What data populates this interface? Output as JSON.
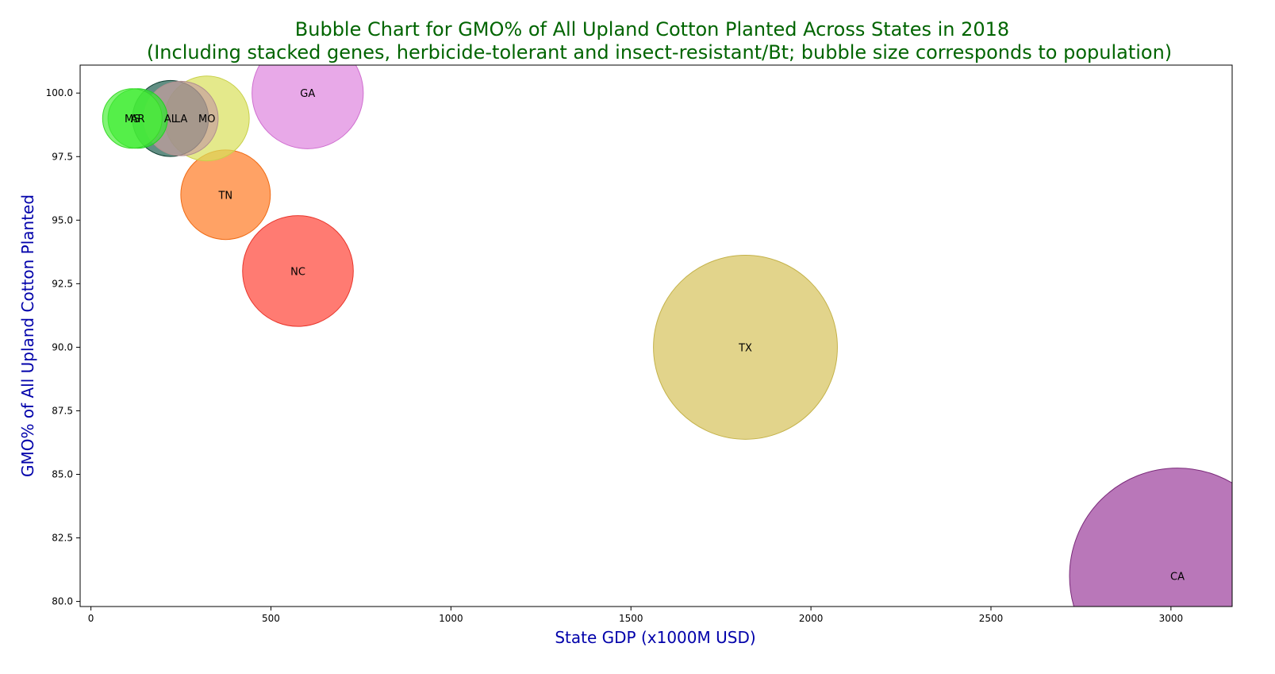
{
  "chart_data": {
    "type": "scatter",
    "title": "Bubble Chart for GMO% of All Upland Cotton Planted Across States in 2018",
    "subtitle": "(Including stacked genes, herbicide-tolerant and insect-resistant/Bt; bubble size corresponds to population)",
    "xlabel": "State GDP (x1000M USD)",
    "ylabel": "GMO% of All Upland Cotton Planted",
    "xlim": [
      -30,
      3170
    ],
    "ylim": [
      79.8,
      101.1
    ],
    "xticks": [
      0,
      500,
      1000,
      1500,
      2000,
      2500,
      3000
    ],
    "yticks": [
      80.0,
      82.5,
      85.0,
      87.5,
      90.0,
      92.5,
      95.0,
      97.5,
      100.0
    ],
    "ytick_format": "fixed1",
    "grid": false,
    "points": [
      {
        "label": "CA",
        "x": 3018,
        "y": 81,
        "population_millions": 39.5,
        "color": "#9b3d9b",
        "edge": "#7a2a7a"
      },
      {
        "label": "TX",
        "x": 1818,
        "y": 90,
        "population_millions": 28.7,
        "color": "#d6c25a",
        "edge": "#c4b24a"
      },
      {
        "label": "GA",
        "x": 602,
        "y": 100,
        "population_millions": 10.5,
        "color": "#de85de",
        "edge": "#cf6fcf"
      },
      {
        "label": "NC",
        "x": 575,
        "y": 93,
        "population_millions": 10.4,
        "color": "#ff4336",
        "edge": "#e8352b"
      },
      {
        "label": "TN",
        "x": 374,
        "y": 96,
        "population_millions": 6.8,
        "color": "#ff7a24",
        "edge": "#ef6a14"
      },
      {
        "label": "MO",
        "x": 322,
        "y": 99,
        "population_millions": 6.1,
        "color": "#d9e05a",
        "edge": "#c8d04a"
      },
      {
        "label": "AL",
        "x": 221,
        "y": 99,
        "population_millions": 4.9,
        "color": "#1e5e4e",
        "edge": "#0f3f33"
      },
      {
        "label": "LA",
        "x": 250,
        "y": 99,
        "population_millions": 4.7,
        "color": "#c8a0a0",
        "edge": "#b09090"
      },
      {
        "label": "AR",
        "x": 130,
        "y": 99,
        "population_millions": 3.0,
        "color": "#2ee82e",
        "edge": "#22d022"
      },
      {
        "label": "MS",
        "x": 115,
        "y": 99,
        "population_millions": 3.0,
        "color": "#4cf03a",
        "edge": "#3ad82a"
      }
    ]
  }
}
